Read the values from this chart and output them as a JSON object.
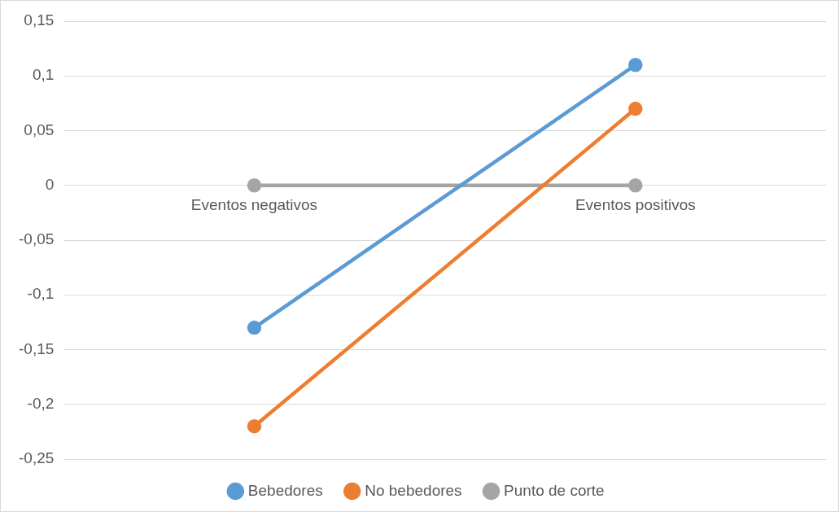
{
  "chart_data": {
    "type": "line",
    "categories": [
      "Eventos negativos",
      "Eventos positivos"
    ],
    "series": [
      {
        "name": "Bebedores",
        "color": "#5b9bd5",
        "values": [
          -0.13,
          0.11
        ]
      },
      {
        "name": "No bebedores",
        "color": "#ed7d31",
        "values": [
          -0.22,
          0.07
        ]
      },
      {
        "name": "Punto de corte",
        "color": "#a5a5a5",
        "values": [
          0,
          0
        ]
      }
    ],
    "ylim": [
      -0.25,
      0.15
    ],
    "yticks": [
      {
        "value": -0.25,
        "label": "-0,25"
      },
      {
        "value": -0.2,
        "label": "-0,2"
      },
      {
        "value": -0.15,
        "label": "-0,15"
      },
      {
        "value": -0.1,
        "label": "-0,1"
      },
      {
        "value": -0.05,
        "label": "-0,05"
      },
      {
        "value": 0,
        "label": "0"
      },
      {
        "value": 0.05,
        "label": "0,05"
      },
      {
        "value": 0.1,
        "label": "0,1"
      },
      {
        "value": 0.15,
        "label": "0,15"
      }
    ],
    "grid": "y",
    "legend": "bottom",
    "marker": "circle",
    "line_style": "solid"
  }
}
